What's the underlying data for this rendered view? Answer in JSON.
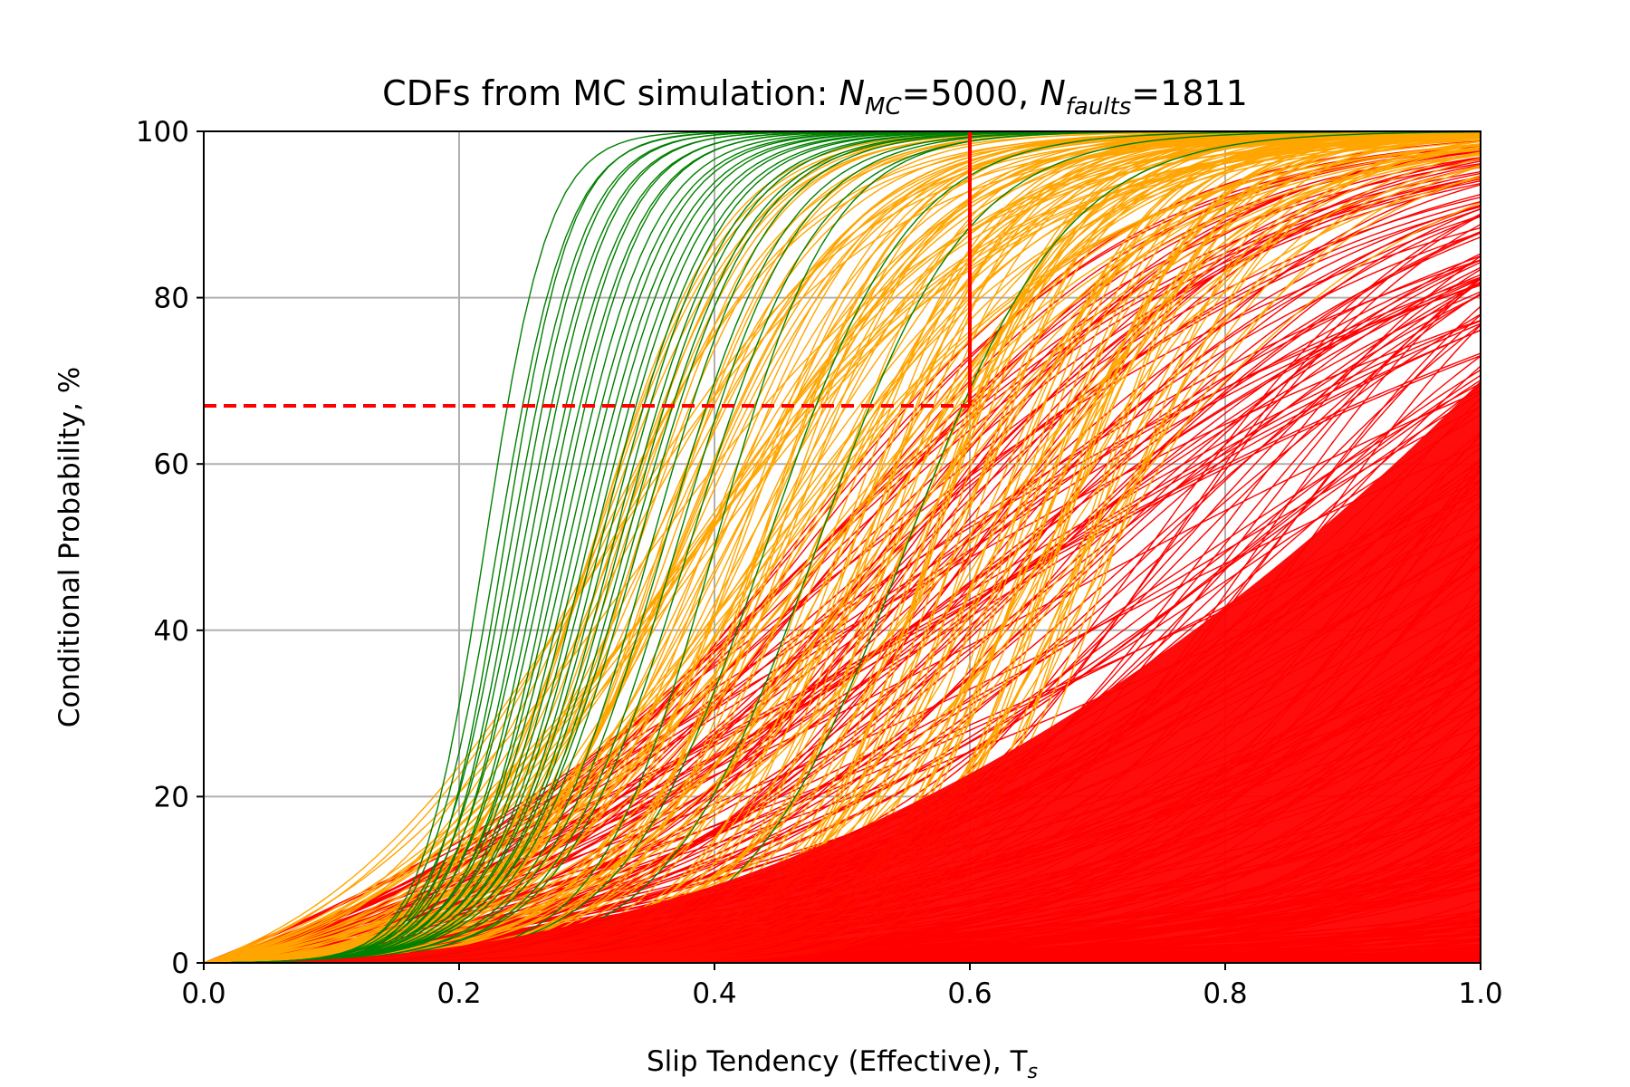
{
  "chart_data": {
    "type": "line",
    "title": {
      "prefix": "CDFs from MC simulation: ",
      "n1_symbol": "N",
      "n1_subscript": "MC",
      "n1_value": "=5000, ",
      "n2_symbol": "N",
      "n2_subscript": "faults",
      "n2_value": "=1811"
    },
    "xlabel": {
      "text": "Slip Tendency (Effective), T",
      "subscript": "s"
    },
    "ylabel": "Conditional Probability, %",
    "xlim": [
      0.0,
      1.0
    ],
    "ylim": [
      0,
      100
    ],
    "x_ticks": [
      {
        "value": 0.0,
        "label": "0.0"
      },
      {
        "value": 0.2,
        "label": "0.2"
      },
      {
        "value": 0.4,
        "label": "0.4"
      },
      {
        "value": 0.6,
        "label": "0.6"
      },
      {
        "value": 0.8,
        "label": "0.8"
      },
      {
        "value": 1.0,
        "label": "1.0"
      }
    ],
    "y_ticks": [
      {
        "value": 0,
        "label": "0"
      },
      {
        "value": 20,
        "label": "20"
      },
      {
        "value": 40,
        "label": "40"
      },
      {
        "value": 60,
        "label": "60"
      },
      {
        "value": 80,
        "label": "80"
      },
      {
        "value": 100,
        "label": "100"
      }
    ],
    "grid": true,
    "threshold_lines": {
      "vertical": {
        "x": 0.6,
        "y_from": 67,
        "y_to": 100,
        "color": "#ff0000",
        "style": "solid"
      },
      "horizontal": {
        "y": 67,
        "x_from": 0.0,
        "x_to": 0.6,
        "color": "#ff0000",
        "style": "dashed"
      }
    },
    "series": [
      {
        "color": "#008000",
        "curve_family": "logistic",
        "curves": [
          {
            "median": 0.22,
            "steepness": 40
          },
          {
            "median": 0.23,
            "steepness": 36
          },
          {
            "median": 0.235,
            "steepness": 38
          },
          {
            "median": 0.24,
            "steepness": 34
          },
          {
            "median": 0.245,
            "steepness": 35
          },
          {
            "median": 0.25,
            "steepness": 32
          },
          {
            "median": 0.255,
            "steepness": 33
          },
          {
            "median": 0.26,
            "steepness": 30
          },
          {
            "median": 0.265,
            "steepness": 31
          },
          {
            "median": 0.27,
            "steepness": 29
          },
          {
            "median": 0.275,
            "steepness": 30
          },
          {
            "median": 0.28,
            "steepness": 28
          },
          {
            "median": 0.285,
            "steepness": 27
          },
          {
            "median": 0.29,
            "steepness": 27
          },
          {
            "median": 0.295,
            "steepness": 26
          },
          {
            "median": 0.3,
            "steepness": 26
          },
          {
            "median": 0.305,
            "steepness": 25
          },
          {
            "median": 0.31,
            "steepness": 25
          },
          {
            "median": 0.315,
            "steepness": 24
          },
          {
            "median": 0.32,
            "steepness": 24
          },
          {
            "median": 0.325,
            "steepness": 23
          },
          {
            "median": 0.33,
            "steepness": 23
          },
          {
            "median": 0.335,
            "steepness": 22
          },
          {
            "median": 0.34,
            "steepness": 22
          },
          {
            "median": 0.35,
            "steepness": 22
          },
          {
            "median": 0.36,
            "steepness": 21
          },
          {
            "median": 0.37,
            "steepness": 21
          },
          {
            "median": 0.38,
            "steepness": 20
          },
          {
            "median": 0.4,
            "steepness": 22
          },
          {
            "median": 0.44,
            "steepness": 18
          },
          {
            "median": 0.48,
            "steepness": 17
          },
          {
            "median": 0.55,
            "steepness": 16
          }
        ]
      },
      {
        "color": "#ffa500",
        "curve_family": "logistic",
        "curves_generated": {
          "count": 150,
          "median_range": [
            0.3,
            0.72
          ],
          "steepness_range": [
            7,
            20
          ]
        }
      },
      {
        "color": "#ff0000",
        "curve_family": "logistic",
        "curves_generated": {
          "count": 450,
          "median_range": [
            0.45,
            3.0
          ],
          "steepness_range": [
            2.5,
            9
          ]
        }
      }
    ]
  }
}
